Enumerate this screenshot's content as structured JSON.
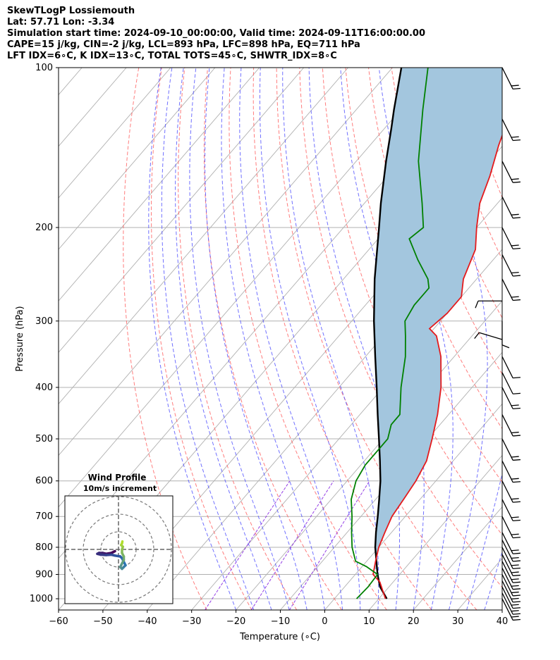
{
  "header": {
    "line1": "SkewTLogP Lossiemouth",
    "line2": "Lat: 57.71   Lon: -3.34",
    "line3": "Simulation start time: 2024-09-10_00:00:00, Valid time: 2024-09-11T16:00:00.00",
    "line4": "CAPE=15 j/kg, CIN=-2 j/kg, LCL=893 hPa, LFC=898 hPa, EQ=711 hPa",
    "line5": "LFT IDX=6∘C, K IDX=13∘C, TOTAL TOTS=45∘C, SHWTR_IDX=8∘C"
  },
  "colors": {
    "temperature": "#e41a1c",
    "dewpoint": "#008000",
    "parcel": "#000000",
    "cape_fill": "#a3c6de",
    "dry_adiabat": "#ff6666",
    "moist_adiabat": "#4d4dff",
    "mixing_ratio": "#8a2be2",
    "isotherm": "#b0b0b0",
    "grid": "#b0b0b0"
  },
  "chart_data": {
    "type": "line",
    "title": "",
    "xlabel": "Temperature (∘C)",
    "ylabel": "Pressure (hPa)",
    "xlim": [
      -60,
      40
    ],
    "ylim": [
      1050,
      100
    ],
    "y_scale": "log",
    "skew": true,
    "xticks": [
      "−60",
      "−50",
      "−40",
      "−30",
      "−20",
      "−10",
      "0",
      "10",
      "20",
      "30",
      "40"
    ],
    "yticks": [
      "100",
      "200",
      "300",
      "400",
      "500",
      "600",
      "700",
      "800",
      "900",
      "1000"
    ],
    "grid": true,
    "series": [
      {
        "key": "temperature",
        "color": "#e41a1c",
        "points": [
          [
            1000,
            11.5
          ],
          [
            930,
            7
          ],
          [
            900,
            4
          ],
          [
            850,
            2
          ],
          [
            800,
            0
          ],
          [
            750,
            -1.5
          ],
          [
            700,
            -3
          ],
          [
            650,
            -3.7
          ],
          [
            600,
            -4.5
          ],
          [
            550,
            -6
          ],
          [
            500,
            -9
          ],
          [
            450,
            -12.5
          ],
          [
            400,
            -17
          ],
          [
            350,
            -23
          ],
          [
            320,
            -28
          ],
          [
            310,
            -31
          ],
          [
            290,
            -30
          ],
          [
            270,
            -30
          ],
          [
            250,
            -33
          ],
          [
            220,
            -36
          ],
          [
            200,
            -40
          ],
          [
            180,
            -44
          ],
          [
            160,
            -47
          ],
          [
            140,
            -51
          ],
          [
            120,
            -55
          ],
          [
            100,
            -58
          ]
        ]
      },
      {
        "key": "dewpoint",
        "color": "#008000",
        "points": [
          [
            1000,
            5
          ],
          [
            950,
            5.3
          ],
          [
            900,
            5
          ],
          [
            870,
            1
          ],
          [
            850,
            -2.5
          ],
          [
            800,
            -6
          ],
          [
            750,
            -9
          ],
          [
            700,
            -12
          ],
          [
            650,
            -15.5
          ],
          [
            600,
            -18
          ],
          [
            560,
            -19
          ],
          [
            500,
            -19
          ],
          [
            470,
            -21
          ],
          [
            450,
            -21
          ],
          [
            400,
            -26
          ],
          [
            350,
            -31
          ],
          [
            320,
            -35
          ],
          [
            300,
            -38
          ],
          [
            280,
            -39
          ],
          [
            260,
            -39
          ],
          [
            250,
            -41
          ],
          [
            230,
            -47
          ],
          [
            210,
            -53
          ],
          [
            200,
            -52
          ],
          [
            180,
            -57
          ],
          [
            150,
            -66
          ],
          [
            120,
            -75
          ],
          [
            100,
            -82
          ]
        ]
      },
      {
        "key": "parcel",
        "color": "#000000",
        "points": [
          [
            1000,
            11.8
          ],
          [
            950,
            8
          ],
          [
            900,
            5
          ],
          [
            850,
            2.2
          ],
          [
            800,
            -0.8
          ],
          [
            750,
            -3.5
          ],
          [
            700,
            -6.2
          ],
          [
            650,
            -9.2
          ],
          [
            600,
            -12.5
          ],
          [
            550,
            -16.5
          ],
          [
            500,
            -21
          ],
          [
            450,
            -26
          ],
          [
            400,
            -31.5
          ],
          [
            350,
            -37.8
          ],
          [
            300,
            -45
          ],
          [
            250,
            -53
          ],
          [
            200,
            -62
          ],
          [
            180,
            -66.3
          ],
          [
            150,
            -73.3
          ],
          [
            130,
            -78.5
          ],
          [
            120,
            -81.5
          ],
          [
            100,
            -88
          ]
        ]
      }
    ],
    "cape_shading": "blue",
    "hodograph": {
      "title": "Wind Profile",
      "subtitle": "10m/s increment",
      "rings": [
        10,
        20,
        30
      ],
      "trace": [
        [
          -2,
          -1
        ],
        [
          -4,
          -2
        ],
        [
          -7,
          -2.5
        ],
        [
          -9,
          -2
        ],
        [
          -11,
          -2
        ],
        [
          -12,
          -2.5
        ],
        [
          -10,
          -3
        ],
        [
          -7,
          -3.2
        ],
        [
          -4,
          -3
        ],
        [
          -2,
          -3.5
        ],
        [
          1,
          -4
        ],
        [
          2,
          -5
        ],
        [
          3,
          -7
        ],
        [
          4,
          -9
        ],
        [
          3,
          -10
        ],
        [
          2,
          -11
        ],
        [
          1,
          -10
        ],
        [
          2,
          -8
        ],
        [
          3,
          -6
        ],
        [
          3,
          -4
        ],
        [
          2,
          -2
        ],
        [
          2,
          0
        ],
        [
          2.5,
          1.5
        ],
        [
          1.5,
          2.5
        ],
        [
          2,
          3.5
        ],
        [
          2.2,
          4.5
        ]
      ]
    },
    "wind_barbs": [
      {
        "p": 100,
        "u": -10,
        "v": 20
      },
      {
        "p": 125,
        "u": -10,
        "v": 20
      },
      {
        "p": 150,
        "u": -10,
        "v": 20
      },
      {
        "p": 175,
        "u": -10,
        "v": 20
      },
      {
        "p": 200,
        "u": -10,
        "v": 20
      },
      {
        "p": 225,
        "u": -10,
        "v": 20
      },
      {
        "p": 250,
        "u": -10,
        "v": 20
      },
      {
        "p": 275,
        "u": 10,
        "v": 0
      },
      {
        "p": 300,
        "u": 0,
        "v": 10
      },
      {
        "p": 325,
        "u": 10,
        "v": -3
      },
      {
        "p": 350,
        "u": -5,
        "v": 10
      },
      {
        "p": 375,
        "u": -5,
        "v": 10
      },
      {
        "p": 400,
        "u": -10,
        "v": 20
      },
      {
        "p": 450,
        "u": -10,
        "v": 20
      },
      {
        "p": 500,
        "u": -10,
        "v": 20
      },
      {
        "p": 550,
        "u": -10,
        "v": 20
      },
      {
        "p": 600,
        "u": -10,
        "v": 20
      },
      {
        "p": 650,
        "u": -10,
        "v": 20
      },
      {
        "p": 700,
        "u": -10,
        "v": 20
      },
      {
        "p": 750,
        "u": -10,
        "v": 20
      },
      {
        "p": 775,
        "u": -10,
        "v": 20
      },
      {
        "p": 800,
        "u": -10,
        "v": 20
      },
      {
        "p": 825,
        "u": -10,
        "v": 20
      },
      {
        "p": 850,
        "u": -10,
        "v": 20
      },
      {
        "p": 875,
        "u": -10,
        "v": 20
      },
      {
        "p": 900,
        "u": -10,
        "v": 20
      },
      {
        "p": 925,
        "u": -10,
        "v": 20
      },
      {
        "p": 950,
        "u": -10,
        "v": 20
      },
      {
        "p": 975,
        "u": -10,
        "v": 20
      },
      {
        "p": 1000,
        "u": -10,
        "v": 20
      }
    ]
  }
}
